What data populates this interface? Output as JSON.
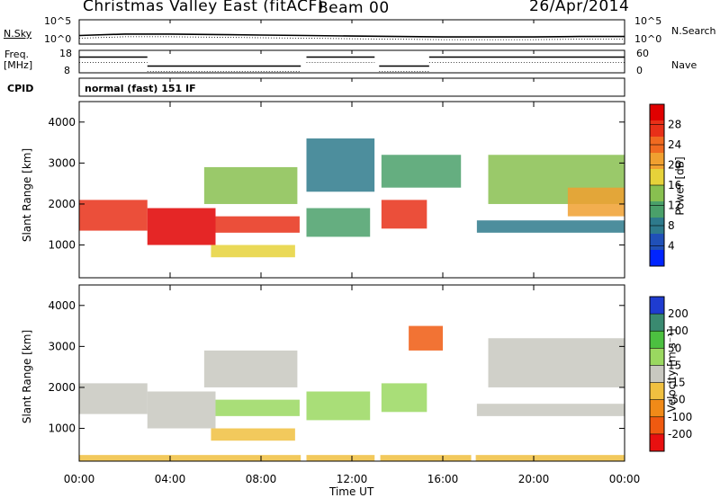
{
  "header": {
    "title": "Christmas Valley East (fitACF)",
    "beam": "Beam 00",
    "date": "26/Apr/2014",
    "mode": "normal (fast) 151 IF"
  },
  "noise_panel": {
    "left_label": "N.Sky",
    "right_label": "N.Search",
    "left_ticks": [
      "10^5",
      "10^0"
    ],
    "right_ticks": [
      "10^5",
      "10^0"
    ]
  },
  "freq_panel": {
    "left_label_1": "Freq.",
    "left_label_2": "[MHz]",
    "right_label": "Nave",
    "left_ticks": [
      "18",
      "8"
    ],
    "right_ticks": [
      "60",
      "0"
    ],
    "cpid_label": "CPID"
  },
  "x_axis": {
    "label": "Time UT",
    "ticks": [
      "00:00",
      "04:00",
      "08:00",
      "12:00",
      "16:00",
      "20:00",
      "00:00"
    ]
  },
  "y_axis": {
    "label": "Slant Range [km]",
    "ticks": [
      "4000",
      "3000",
      "2000",
      "1000"
    ]
  },
  "colorbars": {
    "power": {
      "label": "Power [dB]",
      "ticks": [
        "28",
        "24",
        "20",
        "16",
        "12",
        "8",
        "4"
      ],
      "colors": [
        "#0024ff",
        "#2050b8",
        "#2e7a8c",
        "#4aa06a",
        "#88c050",
        "#e6d23a",
        "#f0a030",
        "#f06a20",
        "#e83018",
        "#e00000"
      ]
    },
    "velocity": {
      "label": "Velocity [m s⁻¹]",
      "ticks": [
        "200",
        "100",
        "50",
        "15",
        "-15",
        "-50",
        "-100",
        "-200"
      ],
      "colors": [
        "#1f3cd0",
        "#3a8a70",
        "#4cc040",
        "#9ad860",
        "#c8c8c0",
        "#f0c040",
        "#f08a18",
        "#f05a10",
        "#e81010"
      ]
    }
  },
  "chart_data": [
    {
      "type": "line",
      "title": "N.Sky / N.Search",
      "x_hours": [
        0,
        2,
        4,
        6,
        8,
        10,
        12,
        14,
        16,
        18,
        20,
        22,
        24
      ],
      "y_log10_nsky": [
        1.2,
        1.5,
        1.5,
        1.4,
        1.3,
        1.2,
        1.1,
        1.0,
        0.9,
        0.9,
        0.9,
        1.0,
        1.0
      ],
      "ylim": [
        0,
        5
      ]
    },
    {
      "type": "line",
      "title": "Frequency [MHz]",
      "segments": [
        {
          "x0": 0.0,
          "x1": 3.0,
          "freq_mhz": 15
        },
        {
          "x0": 3.0,
          "x1": 9.75,
          "freq_mhz": 11
        },
        {
          "x0": 10.0,
          "x1": 13.0,
          "freq_mhz": 15
        },
        {
          "x0": 13.2,
          "x1": 15.4,
          "freq_mhz": 11
        },
        {
          "x0": 15.4,
          "x1": 24.0,
          "freq_mhz": 15
        }
      ],
      "ylim": [
        8,
        18
      ]
    },
    {
      "type": "heatmap",
      "title": "Power [dB]",
      "xlabel": "Time UT",
      "ylabel": "Slant Range [km]",
      "xlim_hours": [
        0,
        24
      ],
      "ylim_km": [
        200,
        4500
      ],
      "zlim": [
        0,
        30
      ],
      "regions": [
        {
          "t0": 0.0,
          "t1": 3.0,
          "r0": 1350,
          "r1": 2100,
          "db": 26
        },
        {
          "t0": 3.0,
          "t1": 6.0,
          "r0": 1000,
          "r1": 1900,
          "db": 28
        },
        {
          "t0": 6.0,
          "t1": 9.7,
          "r0": 1300,
          "r1": 1700,
          "db": 26
        },
        {
          "t0": 5.8,
          "t1": 9.5,
          "r0": 700,
          "r1": 1000,
          "db": 16
        },
        {
          "t0": 5.5,
          "t1": 9.6,
          "r0": 2000,
          "r1": 2900,
          "db": 12
        },
        {
          "t0": 10.0,
          "t1": 12.8,
          "r0": 1200,
          "r1": 1900,
          "db": 10
        },
        {
          "t0": 10.0,
          "t1": 13.0,
          "r0": 2300,
          "r1": 3600,
          "db": 8
        },
        {
          "t0": 13.3,
          "t1": 15.3,
          "r0": 1400,
          "r1": 2100,
          "db": 24
        },
        {
          "t0": 13.3,
          "t1": 16.8,
          "r0": 2400,
          "r1": 3200,
          "db": 10
        },
        {
          "t0": 17.5,
          "t1": 24.0,
          "r0": 1300,
          "r1": 1600,
          "db": 8
        },
        {
          "t0": 18.0,
          "t1": 24.0,
          "r0": 2000,
          "r1": 3200,
          "db": 12
        },
        {
          "t0": 21.5,
          "t1": 24.0,
          "r0": 1700,
          "r1": 2400,
          "db": 20
        }
      ]
    },
    {
      "type": "heatmap",
      "title": "Velocity [m s-1]",
      "xlabel": "Time UT",
      "ylabel": "Slant Range [km]",
      "xlim_hours": [
        0,
        24
      ],
      "ylim_km": [
        200,
        4500
      ],
      "zlim": [
        -200,
        200
      ],
      "regions": [
        {
          "t0": 0.0,
          "t1": 3.0,
          "r0": 1350,
          "r1": 2100,
          "v": 0
        },
        {
          "t0": 3.0,
          "t1": 6.0,
          "r0": 1000,
          "r1": 1900,
          "v": 0
        },
        {
          "t0": 6.0,
          "t1": 9.7,
          "r0": 1300,
          "r1": 1700,
          "v": 30
        },
        {
          "t0": 5.8,
          "t1": 9.5,
          "r0": 700,
          "r1": 1000,
          "v": -30
        },
        {
          "t0": 5.5,
          "t1": 9.6,
          "r0": 2000,
          "r1": 2900,
          "v": 0
        },
        {
          "t0": 10.0,
          "t1": 12.8,
          "r0": 1200,
          "r1": 1900,
          "v": 30
        },
        {
          "t0": 13.3,
          "t1": 15.3,
          "r0": 1400,
          "r1": 2100,
          "v": 30
        },
        {
          "t0": 14.5,
          "t1": 16.0,
          "r0": 2900,
          "r1": 3500,
          "v": -200
        },
        {
          "t0": 18.0,
          "t1": 24.0,
          "r0": 2000,
          "r1": 3200,
          "v": 0
        },
        {
          "t0": 17.5,
          "t1": 24.0,
          "r0": 1300,
          "r1": 1600,
          "v": 0
        },
        {
          "t0": 0.0,
          "t1": 24.0,
          "r0": 200,
          "r1": 350,
          "v": -50
        }
      ]
    }
  ]
}
